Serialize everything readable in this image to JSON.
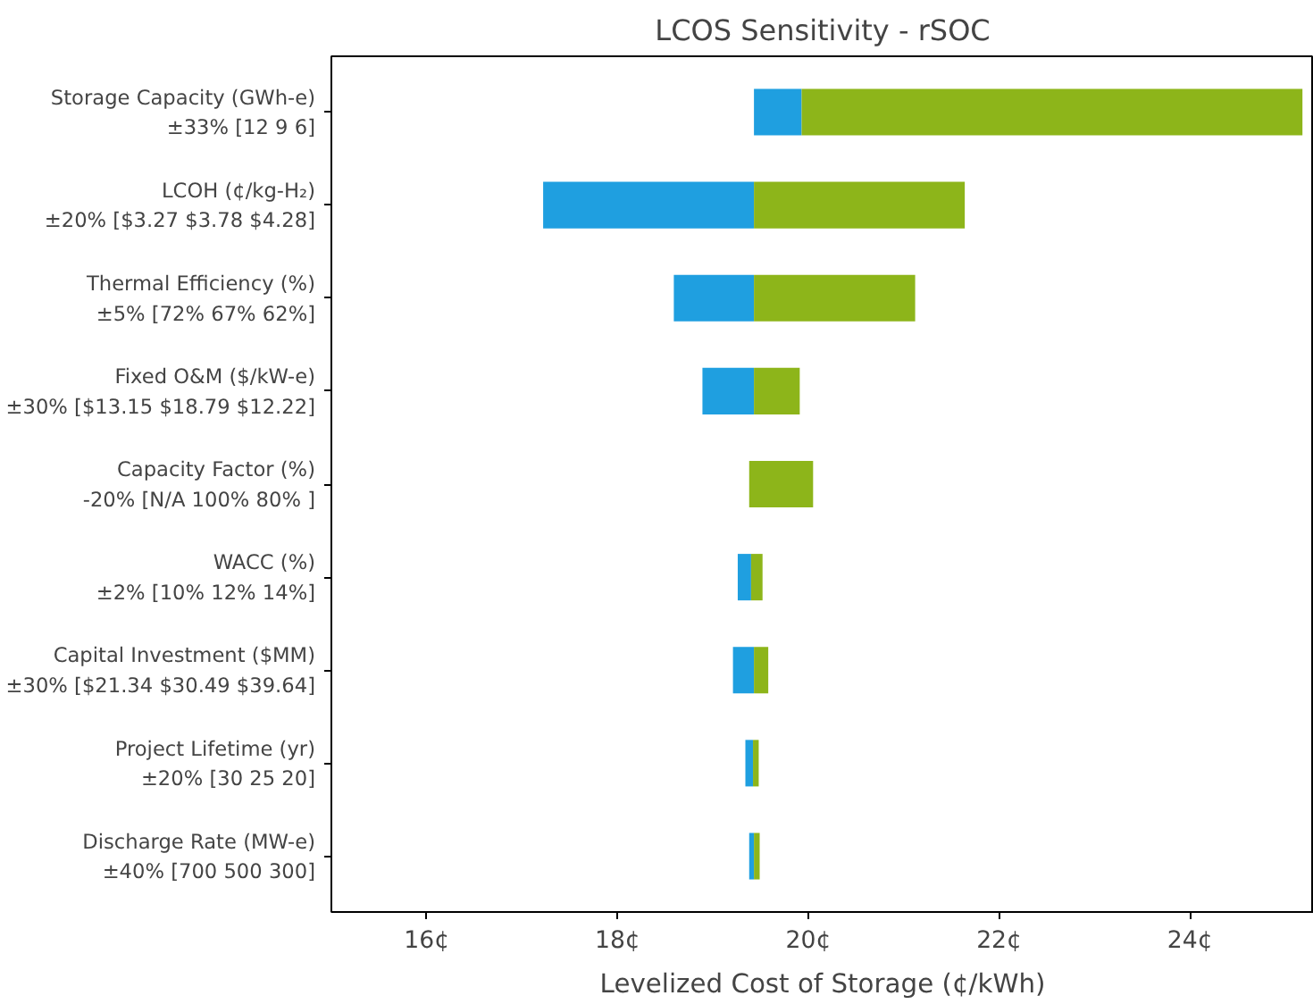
{
  "chart_data": {
    "type": "bar",
    "orientation": "horizontal",
    "title": "LCOS Sensitivity - rSOC",
    "xlabel": "Levelized Cost of Storage (¢/kWh)",
    "categories": [
      "Storage Capacity (GWh-e)\n±33% [12 9 6]",
      "LCOH (¢/kg-H₂)\n±20% [$3.27 $3.78 $4.28]",
      "Thermal Efficiency (%)\n±5% [72% 67% 62%]",
      "Fixed O&M ($/kW-e)\n±30% [$13.15 $18.79 $12.22]",
      "Capacity Factor (%)\n-20% [N/A 100% 80% ]",
      "WACC (%)\n±2% [10% 12% 14%]",
      "Capital Investment ($MM)\n±30% [$21.34 $30.49 $39.64]",
      "Project Lifetime (yr)\n±20% [30 25 20]",
      "Discharge Rate (MW-e)\n±40% [700 500 300]"
    ],
    "series": [
      {
        "color": "#1f9fe0",
        "base": [
          19.43,
          17.22,
          18.59,
          18.89,
          null,
          19.26,
          19.21,
          19.34,
          19.38
        ],
        "values": [
          0.5,
          2.21,
          0.84,
          0.54,
          null,
          0.14,
          0.22,
          0.08,
          0.05
        ]
      },
      {
        "color": "#8db51a",
        "base": [
          19.93,
          19.43,
          19.43,
          19.43,
          19.38,
          19.4,
          19.43,
          19.42,
          19.43
        ],
        "values": [
          5.25,
          2.21,
          1.69,
          0.48,
          0.67,
          0.12,
          0.15,
          0.06,
          0.06
        ]
      }
    ],
    "xlim": [
      15,
      25.3
    ],
    "xticks": [
      {
        "value": 16,
        "label": "16¢"
      },
      {
        "value": 18,
        "label": "18¢"
      },
      {
        "value": 20,
        "label": "20¢"
      },
      {
        "value": 22,
        "label": "22¢"
      },
      {
        "value": 24,
        "label": "24¢"
      }
    ],
    "grid": false
  }
}
